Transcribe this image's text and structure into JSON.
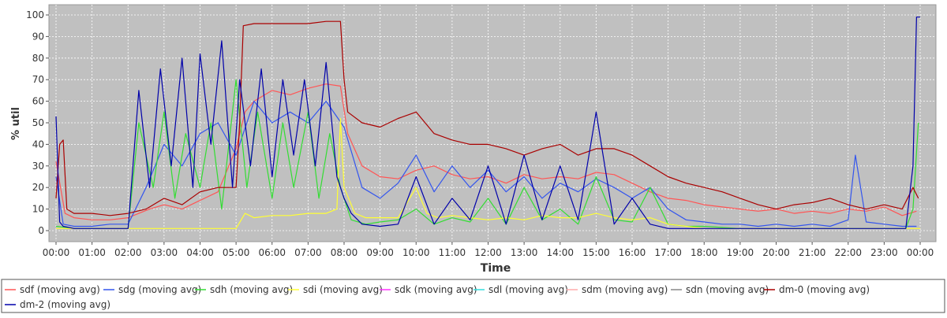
{
  "chart_data": {
    "type": "line",
    "xlabel": "Time",
    "ylabel": "% util",
    "x_ticks": [
      "00:00",
      "01:00",
      "02:00",
      "03:00",
      "04:00",
      "05:00",
      "06:00",
      "07:00",
      "08:00",
      "09:00",
      "10:00",
      "11:00",
      "12:00",
      "13:00",
      "14:00",
      "15:00",
      "16:00",
      "17:00",
      "18:00",
      "19:00",
      "20:00",
      "21:00",
      "22:00",
      "23:00",
      "00:00"
    ],
    "y_ticks": [
      0,
      10,
      20,
      30,
      40,
      50,
      60,
      70,
      80,
      90,
      100
    ],
    "xlim": [
      0,
      24
    ],
    "ylim": [
      0,
      100
    ],
    "grid": true,
    "legend_position": "bottom",
    "background": "#c0c0c0",
    "series": [
      {
        "name": "sdf (moving avg)",
        "color": "#ff5555",
        "x": [
          0,
          0.25,
          0.5,
          1,
          1.5,
          2,
          2.3,
          2.6,
          3,
          3.5,
          4,
          4.5,
          5,
          5.25,
          5.5,
          6,
          6.5,
          7,
          7.5,
          7.9,
          8.1,
          8.5,
          9,
          9.5,
          10,
          10.5,
          11,
          11.5,
          12,
          12.5,
          13,
          13.5,
          14,
          14.5,
          15,
          15.5,
          16,
          16.5,
          17,
          17.5,
          18,
          18.5,
          19,
          19.5,
          20,
          20.5,
          21,
          21.5,
          22,
          22.5,
          23,
          23.5,
          23.9
        ],
        "y": [
          32,
          8,
          6,
          5,
          5,
          6,
          8,
          10,
          12,
          10,
          14,
          18,
          38,
          55,
          60,
          65,
          63,
          66,
          68,
          67,
          45,
          30,
          25,
          24,
          28,
          30,
          26,
          24,
          25,
          22,
          26,
          24,
          25,
          24,
          27,
          26,
          22,
          18,
          15,
          14,
          12,
          11,
          10,
          9,
          10,
          8,
          9,
          8,
          10,
          9,
          11,
          7,
          9
        ]
      },
      {
        "name": "sdg (moving avg)",
        "color": "#3355ee",
        "x": [
          0,
          0.2,
          0.5,
          1,
          1.5,
          2,
          2.5,
          3,
          3.5,
          4,
          4.5,
          5,
          5.5,
          6,
          6.5,
          7,
          7.5,
          8,
          8.5,
          9,
          9.5,
          10,
          10.5,
          11,
          11.5,
          12,
          12.5,
          13,
          13.5,
          14,
          14.5,
          15,
          15.5,
          16,
          16.5,
          17,
          17.5,
          18,
          18.5,
          19,
          19.5,
          20,
          20.5,
          21,
          21.5,
          22,
          22.2,
          22.5,
          23,
          23.5,
          23.9
        ],
        "y": [
          25,
          3,
          2,
          2,
          3,
          3,
          20,
          40,
          30,
          45,
          50,
          35,
          60,
          50,
          55,
          50,
          60,
          48,
          20,
          15,
          22,
          35,
          18,
          30,
          20,
          28,
          18,
          25,
          15,
          22,
          18,
          24,
          20,
          15,
          20,
          10,
          5,
          4,
          3,
          3,
          2,
          3,
          2,
          3,
          2,
          5,
          35,
          4,
          3,
          2,
          2
        ]
      },
      {
        "name": "sdh (moving avg)",
        "color": "#33dd33",
        "x": [
          0,
          0.5,
          1,
          1.5,
          2,
          2.3,
          2.7,
          3,
          3.3,
          3.6,
          4,
          4.3,
          4.6,
          5,
          5.3,
          5.6,
          6,
          6.3,
          6.6,
          7,
          7.3,
          7.6,
          7.9,
          8.2,
          8.6,
          9,
          9.5,
          10,
          10.5,
          11,
          11.5,
          12,
          12.5,
          13,
          13.5,
          14,
          14.5,
          15,
          15.5,
          16,
          16.5,
          17,
          17.5,
          18,
          19,
          20,
          21,
          22,
          23,
          23.6,
          23.8,
          23.95
        ],
        "y": [
          2,
          1,
          1,
          1,
          1,
          50,
          20,
          55,
          15,
          45,
          20,
          50,
          10,
          70,
          20,
          55,
          15,
          50,
          20,
          55,
          15,
          45,
          20,
          5,
          3,
          4,
          5,
          10,
          3,
          6,
          4,
          15,
          3,
          20,
          5,
          10,
          3,
          25,
          5,
          4,
          20,
          3,
          2,
          2,
          1,
          1,
          1,
          1,
          1,
          1,
          10,
          50
        ]
      },
      {
        "name": "sdi (moving avg)",
        "color": "#ffff33",
        "x": [
          0,
          1,
          2,
          2.5,
          3,
          3.5,
          4,
          4.5,
          5,
          5.25,
          5.5,
          6,
          6.5,
          7,
          7.5,
          7.8,
          7.9,
          8,
          8.3,
          8.6,
          9,
          9.5,
          10,
          10.3,
          10.6,
          11,
          11.5,
          12,
          12.5,
          13,
          13.5,
          14,
          14.5,
          15,
          15.5,
          16,
          16.5,
          17,
          17.5,
          18,
          19,
          20,
          21,
          22,
          23,
          24
        ],
        "y": [
          1,
          1,
          1,
          1,
          1,
          1,
          1,
          1,
          1,
          8,
          6,
          7,
          7,
          8,
          8,
          10,
          52,
          20,
          8,
          6,
          6,
          6,
          20,
          8,
          6,
          7,
          6,
          5,
          6,
          5,
          7,
          6,
          6,
          8,
          6,
          5,
          6,
          3,
          2,
          1,
          1,
          1,
          1,
          1,
          1,
          1
        ]
      },
      {
        "name": "sdk (moving avg)",
        "color": "#ff33ff",
        "x": [],
        "y": []
      },
      {
        "name": "sdl (moving avg)",
        "color": "#33dddd",
        "x": [],
        "y": []
      },
      {
        "name": "sdm (moving avg)",
        "color": "#ffaaaa",
        "x": [],
        "y": []
      },
      {
        "name": "sdn (moving avg)",
        "color": "#888888",
        "x": [],
        "y": []
      },
      {
        "name": "dm-0 (moving avg)",
        "color": "#aa0000",
        "x": [
          0,
          0.1,
          0.2,
          0.3,
          0.5,
          1,
          1.5,
          2,
          2.5,
          3,
          3.5,
          4,
          4.5,
          5,
          5.1,
          5.2,
          5.5,
          6,
          6.5,
          7,
          7.5,
          7.9,
          8.0,
          8.1,
          8.5,
          9,
          9.5,
          10,
          10.5,
          11,
          11.5,
          12,
          12.5,
          13,
          13.5,
          14,
          14.5,
          15,
          15.5,
          16,
          16.5,
          17,
          17.5,
          18,
          18.5,
          19,
          19.5,
          20,
          20.5,
          21,
          21.5,
          22,
          22.5,
          23,
          23.5,
          23.8,
          23.95
        ],
        "y": [
          15,
          40,
          42,
          10,
          8,
          8,
          7,
          8,
          10,
          15,
          12,
          18,
          20,
          20,
          50,
          95,
          96,
          96,
          96,
          96,
          97,
          97,
          70,
          55,
          50,
          48,
          52,
          55,
          45,
          42,
          40,
          40,
          38,
          35,
          38,
          40,
          35,
          38,
          38,
          35,
          30,
          25,
          22,
          20,
          18,
          15,
          12,
          10,
          12,
          13,
          15,
          12,
          10,
          12,
          10,
          20,
          15
        ]
      },
      {
        "name": "dm-2 (moving avg)",
        "color": "#0000aa",
        "x": [
          0,
          0.1,
          0.2,
          0.5,
          1,
          1.5,
          2,
          2.3,
          2.6,
          2.9,
          3.2,
          3.5,
          3.8,
          4,
          4.3,
          4.6,
          4.9,
          5.1,
          5.4,
          5.7,
          6,
          6.3,
          6.6,
          6.9,
          7.2,
          7.5,
          7.8,
          8,
          8.2,
          8.5,
          9,
          9.5,
          10,
          10.5,
          11,
          11.5,
          12,
          12.5,
          13,
          13.5,
          14,
          14.5,
          15,
          15.5,
          16,
          16.5,
          17,
          17.5,
          18,
          19,
          20,
          21,
          22,
          23,
          23.6,
          23.8,
          23.9,
          24
        ],
        "y": [
          53,
          4,
          2,
          1,
          1,
          1,
          1,
          65,
          20,
          75,
          30,
          80,
          20,
          82,
          40,
          88,
          20,
          70,
          30,
          75,
          25,
          70,
          35,
          70,
          30,
          78,
          25,
          15,
          8,
          3,
          2,
          3,
          25,
          3,
          15,
          5,
          30,
          3,
          35,
          5,
          30,
          5,
          55,
          3,
          15,
          3,
          1,
          1,
          1,
          1,
          1,
          1,
          1,
          1,
          1,
          30,
          99,
          99
        ]
      }
    ]
  }
}
